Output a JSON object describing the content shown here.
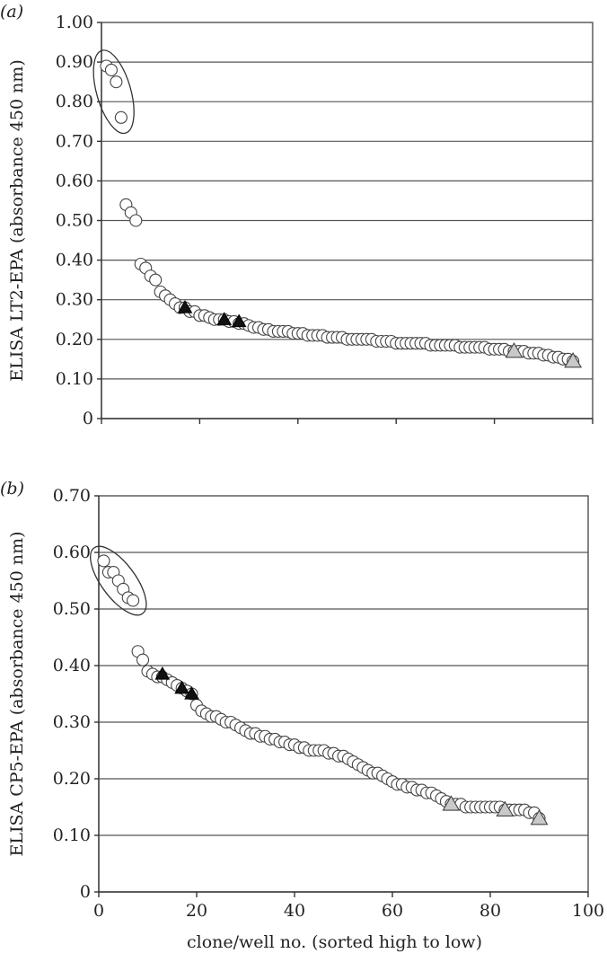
{
  "chart_data": [
    {
      "panel_label": "(a)",
      "type": "scatter",
      "ylabel": "ELISA LT2-EPA (absorbance 450 nm)",
      "xlabel": "",
      "xlim": [
        0,
        100
      ],
      "ylim": [
        0,
        1.0
      ],
      "y_tick_labels": [
        "0",
        "0.10",
        "0.20",
        "0.30",
        "0.40",
        "0.50",
        "0.60",
        "0.70",
        "0.80",
        "0.90",
        "1.00"
      ],
      "x_ticks": [
        0,
        20,
        40,
        60,
        80,
        100
      ],
      "x_tick_labels": [],
      "grid": "horizontal",
      "ellipse_around": [
        1,
        4
      ],
      "series": [
        {
          "marker": "open-circle",
          "x": [
            1,
            2,
            3,
            4,
            5,
            6,
            7,
            8,
            9,
            10,
            11,
            12,
            13,
            14,
            15,
            16,
            17,
            18,
            19,
            20,
            21,
            22,
            23,
            24,
            25,
            26,
            27,
            28,
            29,
            30,
            31,
            32,
            33,
            34,
            35,
            36,
            37,
            38,
            39,
            40,
            41,
            42,
            43,
            44,
            45,
            46,
            47,
            48,
            49,
            50,
            51,
            52,
            53,
            54,
            55,
            56,
            57,
            58,
            59,
            60,
            61,
            62,
            63,
            64,
            65,
            66,
            67,
            68,
            69,
            70,
            71,
            72,
            73,
            74,
            75,
            76,
            77,
            78,
            79,
            80,
            81,
            82,
            83,
            84,
            85,
            86,
            87,
            88,
            89,
            90,
            91,
            92,
            93,
            94,
            95,
            96
          ],
          "y": [
            0.89,
            0.88,
            0.85,
            0.76,
            0.54,
            0.52,
            0.5,
            0.39,
            0.38,
            0.36,
            0.35,
            0.32,
            0.31,
            0.3,
            0.29,
            0.28,
            0.28,
            0.27,
            0.27,
            0.26,
            0.26,
            0.255,
            0.25,
            0.25,
            0.25,
            0.245,
            0.245,
            0.24,
            0.24,
            0.235,
            0.23,
            0.23,
            0.225,
            0.225,
            0.22,
            0.22,
            0.22,
            0.22,
            0.215,
            0.215,
            0.215,
            0.21,
            0.21,
            0.21,
            0.21,
            0.205,
            0.205,
            0.205,
            0.205,
            0.2,
            0.2,
            0.2,
            0.2,
            0.2,
            0.2,
            0.195,
            0.195,
            0.195,
            0.195,
            0.19,
            0.19,
            0.19,
            0.19,
            0.19,
            0.19,
            0.19,
            0.185,
            0.185,
            0.185,
            0.185,
            0.185,
            0.185,
            0.18,
            0.18,
            0.18,
            0.18,
            0.18,
            0.18,
            0.175,
            0.175,
            0.175,
            0.175,
            0.17,
            0.17,
            0.17,
            0.17,
            0.165,
            0.165,
            0.165,
            0.16,
            0.16,
            0.155,
            0.155,
            0.15,
            0.15,
            0.145
          ]
        },
        {
          "marker": "filled-triangle",
          "x": [
            17,
            25,
            28
          ],
          "y": [
            0.28,
            0.25,
            0.245
          ]
        },
        {
          "marker": "grey-triangle",
          "x": [
            84,
            96
          ],
          "y": [
            0.17,
            0.145
          ]
        }
      ]
    },
    {
      "panel_label": "(b)",
      "type": "scatter",
      "ylabel": "ELISA CP5-EPA (absorbance 450 nm)",
      "xlabel": "clone/well no. (sorted high to low)",
      "xlim": [
        0,
        100
      ],
      "ylim": [
        0,
        0.7
      ],
      "y_tick_labels": [
        "0",
        "0.10",
        "0.20",
        "0.30",
        "0.40",
        "0.50",
        "0.60",
        "0.70"
      ],
      "x_ticks": [
        0,
        20,
        40,
        60,
        80,
        100
      ],
      "x_tick_labels": [
        "0",
        "20",
        "40",
        "60",
        "80",
        "100"
      ],
      "grid": "horizontal",
      "ellipse_around": [
        1,
        7
      ],
      "series": [
        {
          "marker": "open-circle",
          "x": [
            1,
            2,
            3,
            4,
            5,
            6,
            7,
            8,
            9,
            10,
            11,
            12,
            13,
            14,
            15,
            16,
            17,
            18,
            19,
            20,
            21,
            22,
            23,
            24,
            25,
            26,
            27,
            28,
            29,
            30,
            31,
            32,
            33,
            34,
            35,
            36,
            37,
            38,
            39,
            40,
            41,
            42,
            43,
            44,
            45,
            46,
            47,
            48,
            49,
            50,
            51,
            52,
            53,
            54,
            55,
            56,
            57,
            58,
            59,
            60,
            61,
            62,
            63,
            64,
            65,
            66,
            67,
            68,
            69,
            70,
            71,
            72,
            73,
            74,
            75,
            76,
            77,
            78,
            79,
            80,
            81,
            82,
            83,
            84,
            85,
            86,
            87,
            88,
            89,
            90
          ],
          "y": [
            0.585,
            0.565,
            0.565,
            0.55,
            0.535,
            0.52,
            0.515,
            0.425,
            0.41,
            0.39,
            0.385,
            0.38,
            0.38,
            0.375,
            0.37,
            0.365,
            0.36,
            0.355,
            0.35,
            0.33,
            0.32,
            0.315,
            0.31,
            0.31,
            0.305,
            0.3,
            0.3,
            0.295,
            0.29,
            0.285,
            0.28,
            0.28,
            0.275,
            0.275,
            0.27,
            0.27,
            0.265,
            0.265,
            0.26,
            0.26,
            0.255,
            0.255,
            0.25,
            0.25,
            0.25,
            0.25,
            0.245,
            0.245,
            0.24,
            0.24,
            0.235,
            0.23,
            0.225,
            0.22,
            0.215,
            0.21,
            0.21,
            0.205,
            0.2,
            0.195,
            0.19,
            0.19,
            0.185,
            0.185,
            0.18,
            0.18,
            0.175,
            0.175,
            0.17,
            0.165,
            0.16,
            0.155,
            0.155,
            0.155,
            0.15,
            0.15,
            0.15,
            0.15,
            0.15,
            0.15,
            0.15,
            0.15,
            0.145,
            0.145,
            0.145,
            0.145,
            0.145,
            0.14,
            0.14,
            0.13
          ]
        },
        {
          "marker": "filled-triangle",
          "x": [
            13,
            17,
            19
          ],
          "y": [
            0.385,
            0.36,
            0.35
          ]
        },
        {
          "marker": "grey-triangle",
          "x": [
            72,
            83,
            90
          ],
          "y": [
            0.155,
            0.145,
            0.13
          ]
        }
      ]
    }
  ]
}
